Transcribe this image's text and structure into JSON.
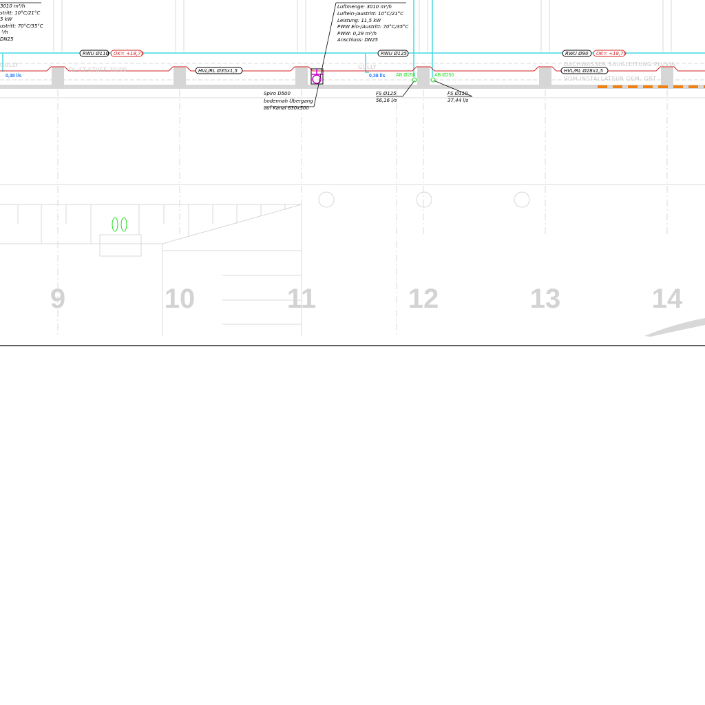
{
  "drawing": {
    "left_spec": [
      "3010 m³/h",
      "stritt: 10°C/21°C",
      "5 kW",
      "ustritt: 70°C/35°C",
      "³/h",
      "DN25"
    ],
    "center_spec": [
      "Luftmenge: 3010 m³/h",
      "Luftein-/austritt: 10°C/21°C",
      "Leistung: 11,5 kW",
      "PWW Ein-/Austritt: 70°C/35°C",
      "PWW: 0,29 m³/h",
      "Anschluss: DN25"
    ],
    "labels": {
      "rwu_110": "RWU Ø110",
      "ok_1": "OK= +18,75",
      "gully_1": "GULLY",
      "flow_1": "0,38 l/s",
      "stufe": "DL-FT-STUFE 30/00",
      "hvl_35": "HVL/RL Ø35x1,5",
      "spiro": "Spiro D500",
      "spiro_2": "bodennah Übergang",
      "spiro_3": "auf Kanal 630x500",
      "rwu_125": "RWU Ø125",
      "gully_2": "GULLY",
      "flow_2": "0,38 l/s",
      "ab_1": "AB Ø250",
      "ab_2": "AB Ø250",
      "fs_125": "FS Ø125",
      "fs_125_flow": "56,16 l/s",
      "fs_110": "FS Ø110",
      "fs_110_flow": "37,44 l/s",
      "rwu_90": "RWU Ø90",
      "ok_2": "OK= +18,75",
      "dachwasser": "DACHWASSER SAUGLEITUNG PLUVIA",
      "hvl_28": "HVL/RL Ø28x1,5",
      "installateur": "VOM INSTALLATEUR GEM. GBT"
    },
    "grid_axes": [
      "9",
      "10",
      "11",
      "12",
      "13",
      "14"
    ],
    "colors": {
      "water": "#40d8e0",
      "heating": "#d02020",
      "vent": "#cc00cc",
      "exhaust": "#22dd22",
      "flow": "#1e78ff",
      "boundary": "#f08010"
    }
  }
}
